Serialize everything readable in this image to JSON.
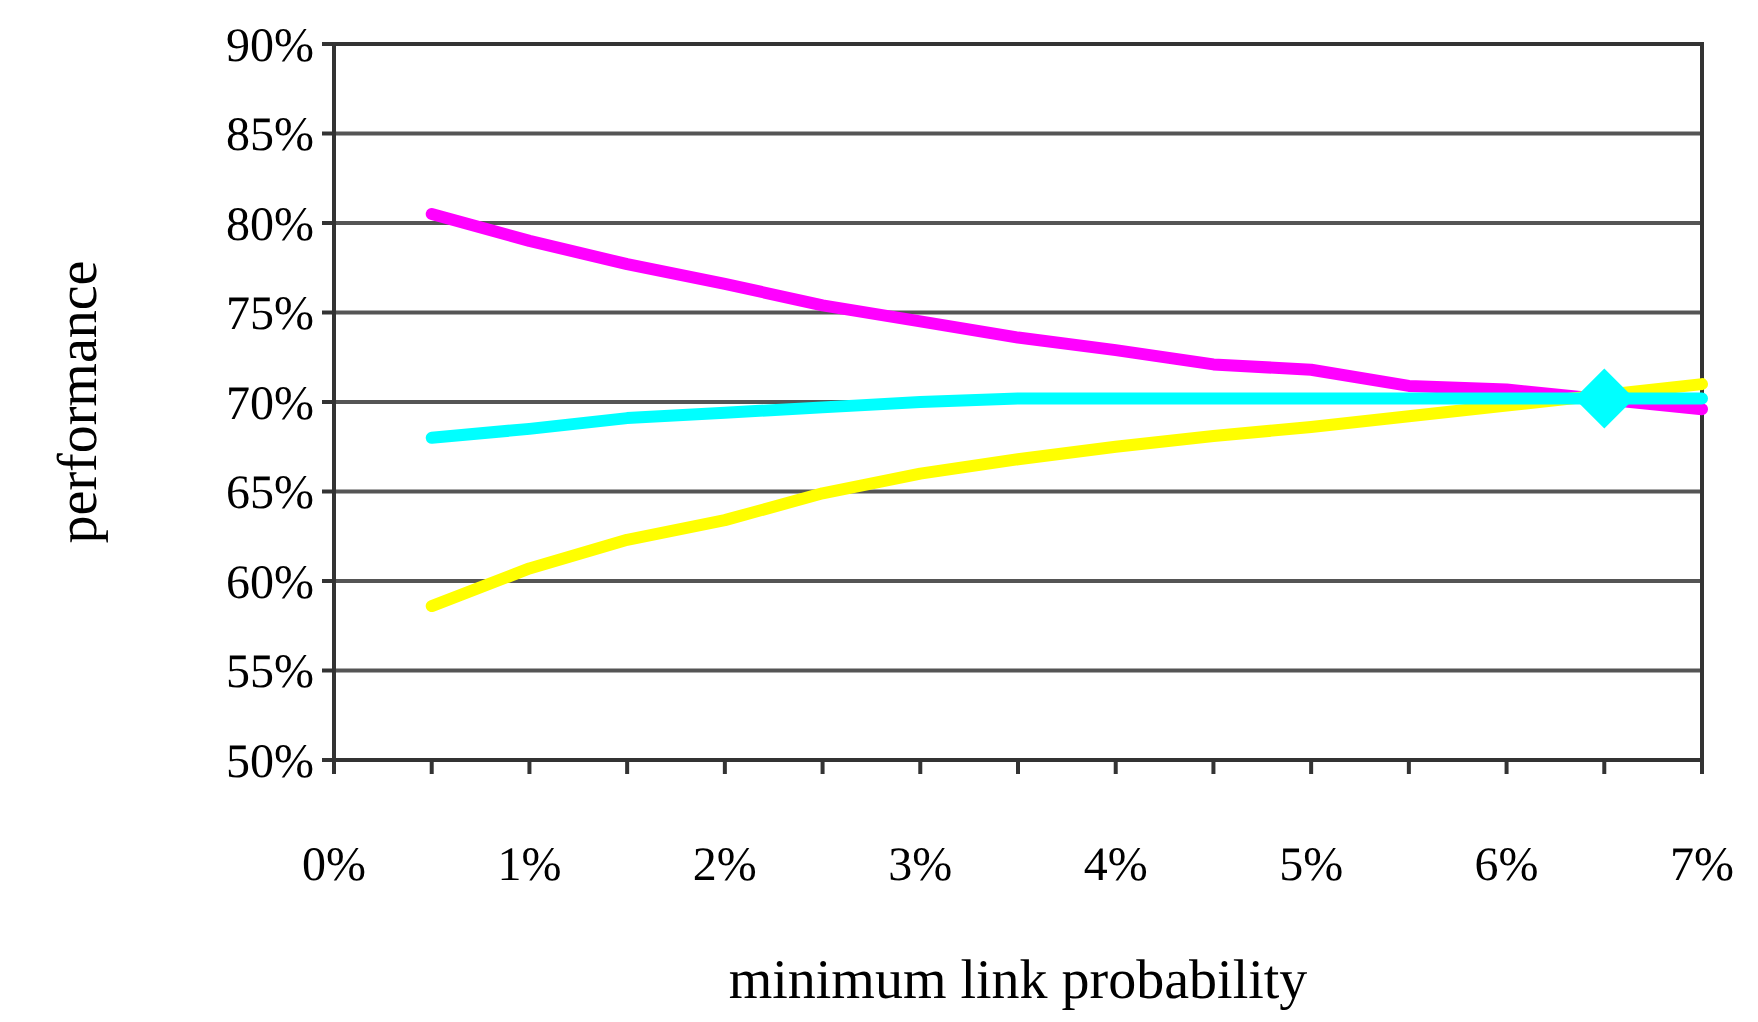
{
  "chart_data": {
    "type": "line",
    "xlabel": "minimum link probability",
    "ylabel": "performance",
    "x": [
      0.5,
      1,
      1.5,
      2,
      2.5,
      3,
      3.5,
      4,
      4.5,
      5,
      5.5,
      6,
      6.5,
      7
    ],
    "series": [
      {
        "color": "#ff00ff",
        "values": [
          80.5,
          79,
          77.7,
          76.6,
          75.4,
          74.5,
          73.6,
          72.9,
          72.1,
          71.8,
          70.9,
          70.7,
          null,
          69.6
        ]
      },
      {
        "color": "#ffff00",
        "values": [
          58.6,
          60.7,
          62.3,
          63.4,
          64.9,
          66.0,
          66.8,
          67.5,
          68.1,
          68.6,
          69.2,
          69.8,
          null,
          71.0
        ]
      },
      {
        "color": "#00ffff",
        "values": [
          68,
          68.5,
          69.1,
          69.4,
          69.7,
          70.0,
          70.2,
          70.2,
          70.2,
          70.2,
          70.2,
          70.2,
          null,
          70.2
        ]
      },
      {
        "type": "scatter",
        "color": "#00ffff",
        "marker": "diamond",
        "x": [
          6.5
        ],
        "values": [
          70.2
        ]
      }
    ],
    "xlim": [
      0,
      7
    ],
    "xticks": [
      {
        "value": 0,
        "label": "0%"
      },
      {
        "value": 0.5,
        "label": null
      },
      {
        "value": 1,
        "label": "1%"
      },
      {
        "value": 1.5,
        "label": null
      },
      {
        "value": 2,
        "label": "2%"
      },
      {
        "value": 2.5,
        "label": null
      },
      {
        "value": 3,
        "label": "3%"
      },
      {
        "value": 3.5,
        "label": null
      },
      {
        "value": 4,
        "label": "4%"
      },
      {
        "value": 4.5,
        "label": null
      },
      {
        "value": 5,
        "label": "5%"
      },
      {
        "value": 5.5,
        "label": null
      },
      {
        "value": 6,
        "label": "6%"
      },
      {
        "value": 6.5,
        "label": null
      },
      {
        "value": 7,
        "label": "7%"
      }
    ],
    "ylim": [
      50,
      90
    ],
    "yticks": [
      {
        "value": 50,
        "label": "50%"
      },
      {
        "value": 55,
        "label": "55%"
      },
      {
        "value": 60,
        "label": "60%"
      },
      {
        "value": 65,
        "label": "65%"
      },
      {
        "value": 70,
        "label": "70%"
      },
      {
        "value": 75,
        "label": "75%"
      },
      {
        "value": 80,
        "label": "80%"
      },
      {
        "value": 85,
        "label": "85%"
      },
      {
        "value": 90,
        "label": "90%"
      }
    ],
    "grid": "y",
    "marker": "none",
    "line_style": "solid"
  }
}
